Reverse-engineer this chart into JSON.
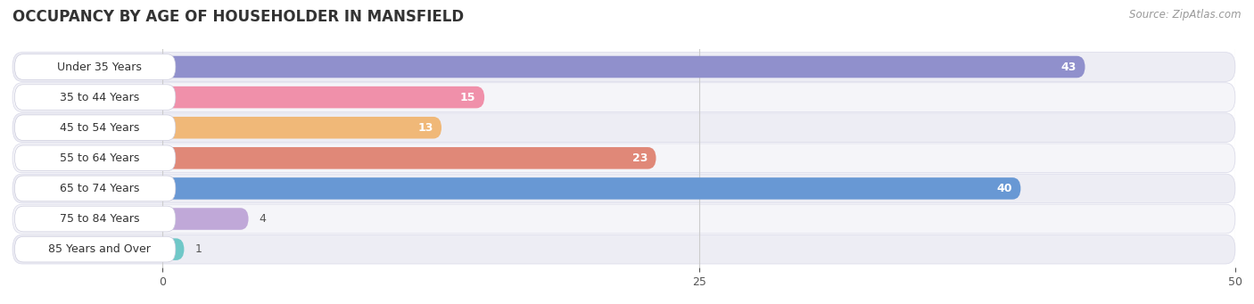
{
  "title": "OCCUPANCY BY AGE OF HOUSEHOLDER IN MANSFIELD",
  "source": "Source: ZipAtlas.com",
  "categories": [
    "Under 35 Years",
    "35 to 44 Years",
    "45 to 54 Years",
    "55 to 64 Years",
    "65 to 74 Years",
    "75 to 84 Years",
    "85 Years and Over"
  ],
  "values": [
    43,
    15,
    13,
    23,
    40,
    4,
    1
  ],
  "bar_colors": [
    "#9090cc",
    "#f090aa",
    "#f0b878",
    "#e08878",
    "#6898d4",
    "#c0a8d8",
    "#70c8c8"
  ],
  "xlim": [
    -7,
    50
  ],
  "xticks": [
    0,
    25,
    50
  ],
  "bar_height": 0.72,
  "title_fontsize": 12,
  "label_fontsize": 9,
  "value_fontsize": 9,
  "source_fontsize": 8.5,
  "row_light": "#f0f0f5",
  "row_dark": "#e4e4ee"
}
